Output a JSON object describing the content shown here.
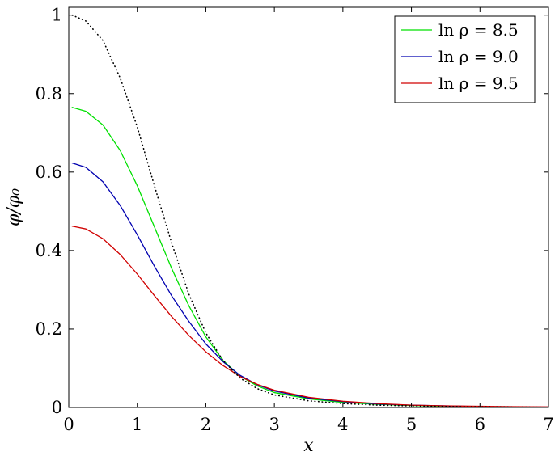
{
  "chart_data": {
    "type": "line",
    "xlabel": "x",
    "ylabel": "φ/φ₀",
    "xlim": [
      0,
      7
    ],
    "ylim": [
      0,
      1.02
    ],
    "x_ticks": [
      0,
      1,
      2,
      3,
      4,
      5,
      6,
      7
    ],
    "y_ticks": [
      0,
      0.2,
      0.4,
      0.6,
      0.8,
      1
    ],
    "y_tick_labels": [
      "0",
      "0.2",
      "0.4",
      "0.6",
      "0.8",
      "1"
    ],
    "legend_position": "top-right",
    "series": [
      {
        "name": "ln ρ = 8.5",
        "color": "#00e000",
        "style": "solid",
        "in_legend": true,
        "x": [
          0.05,
          0.25,
          0.5,
          0.75,
          1.0,
          1.25,
          1.5,
          1.75,
          2.0,
          2.25,
          2.5,
          2.75,
          3.0,
          3.5,
          4.0,
          4.5,
          5.0,
          5.5,
          6.0,
          6.5,
          7.0
        ],
        "y": [
          0.765,
          0.755,
          0.72,
          0.655,
          0.565,
          0.46,
          0.355,
          0.26,
          0.18,
          0.12,
          0.08,
          0.055,
          0.038,
          0.022,
          0.013,
          0.008,
          0.005,
          0.003,
          0.002,
          0.001,
          0.0008
        ]
      },
      {
        "name": "ln ρ = 9.0",
        "color": "#0000b0",
        "style": "solid",
        "in_legend": true,
        "x": [
          0.05,
          0.25,
          0.5,
          0.75,
          1.0,
          1.25,
          1.5,
          1.75,
          2.0,
          2.25,
          2.5,
          2.75,
          3.0,
          3.5,
          4.0,
          4.5,
          5.0,
          5.5,
          6.0,
          6.5,
          7.0
        ],
        "y": [
          0.623,
          0.612,
          0.575,
          0.515,
          0.44,
          0.36,
          0.285,
          0.22,
          0.162,
          0.117,
          0.082,
          0.058,
          0.042,
          0.024,
          0.015,
          0.009,
          0.006,
          0.004,
          0.002,
          0.0015,
          0.001
        ]
      },
      {
        "name": "ln ρ = 9.5",
        "color": "#d00000",
        "style": "solid",
        "in_legend": true,
        "x": [
          0.05,
          0.25,
          0.5,
          0.75,
          1.0,
          1.25,
          1.5,
          1.75,
          2.0,
          2.25,
          2.5,
          2.75,
          3.0,
          3.5,
          4.0,
          4.5,
          5.0,
          5.5,
          6.0,
          6.5,
          7.0
        ],
        "y": [
          0.462,
          0.455,
          0.43,
          0.39,
          0.34,
          0.285,
          0.232,
          0.184,
          0.142,
          0.107,
          0.079,
          0.059,
          0.044,
          0.026,
          0.016,
          0.01,
          0.006,
          0.004,
          0.003,
          0.002,
          0.0015
        ]
      },
      {
        "name": "",
        "color": "#000000",
        "style": "dotted",
        "in_legend": false,
        "x": [
          0.05,
          0.25,
          0.5,
          0.75,
          1.0,
          1.25,
          1.5,
          1.75,
          2.0,
          2.25,
          2.5,
          2.75,
          3.0,
          3.5,
          4.0,
          4.5,
          5.0,
          5.5,
          6.0,
          6.5,
          7.0
        ],
        "y": [
          1.0,
          0.985,
          0.935,
          0.84,
          0.715,
          0.565,
          0.42,
          0.29,
          0.19,
          0.12,
          0.075,
          0.048,
          0.032,
          0.017,
          0.01,
          0.006,
          0.004,
          0.0025,
          0.0015,
          0.001,
          0.0006
        ]
      }
    ]
  }
}
